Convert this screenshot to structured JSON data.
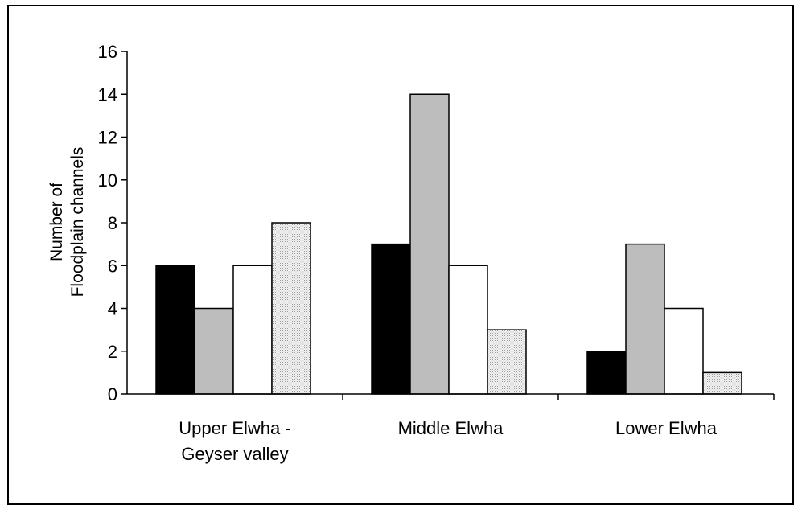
{
  "chart_data": {
    "type": "bar",
    "title": "",
    "xlabel": "",
    "ylabel": [
      "Number of",
      "Floodplain channels"
    ],
    "ylim": [
      0,
      16
    ],
    "yticks": [
      0,
      2,
      4,
      6,
      8,
      10,
      12,
      14,
      16
    ],
    "categories": [
      [
        "Upper Elwha -",
        "Geyser valley"
      ],
      [
        "Middle Elwha"
      ],
      [
        "Lower Elwha"
      ]
    ],
    "series": [
      {
        "fill": "#000000",
        "values": [
          6,
          7,
          2
        ]
      },
      {
        "fill": "#bdbdbd",
        "values": [
          4,
          14,
          7
        ]
      },
      {
        "fill": "#ffffff",
        "values": [
          6,
          6,
          4
        ]
      },
      {
        "fill": "#ebebeb",
        "pattern": "stipple",
        "values": [
          8,
          3,
          1
        ]
      }
    ],
    "legend": "none",
    "grid": false
  }
}
